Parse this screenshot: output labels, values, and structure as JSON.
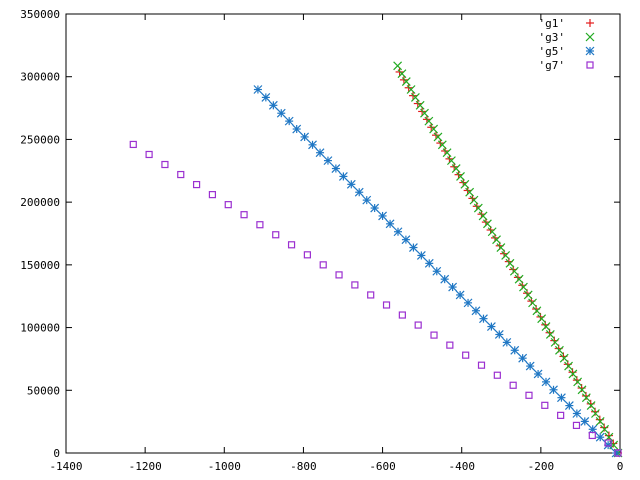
{
  "chart_data": {
    "type": "scatter",
    "title": "",
    "xlabel": "",
    "ylabel": "",
    "xlim": [
      -1400,
      0
    ],
    "ylim": [
      0,
      350000
    ],
    "x_ticks": [
      -1400,
      -1200,
      -1000,
      -800,
      -600,
      -400,
      -200,
      0
    ],
    "y_ticks": [
      0,
      50000,
      100000,
      150000,
      200000,
      250000,
      300000,
      350000
    ],
    "grid": false,
    "legend_position": "top-right",
    "series": [
      {
        "name": "'g1'",
        "marker": "plus",
        "color": "#e31a1c",
        "x": [
          -5,
          -17,
          -28,
          -40,
          -51,
          -63,
          -74,
          -86,
          -97,
          -109,
          -120,
          -132,
          -143,
          -155,
          -166,
          -178,
          -189,
          -201,
          -212,
          -224,
          -235,
          -247,
          -258,
          -270,
          -281,
          -293,
          -304,
          -316,
          -327,
          -339,
          -350,
          -362,
          -373,
          -385,
          -396,
          -408,
          -419,
          -431,
          -442,
          -454,
          -465,
          -477,
          -488,
          -500,
          -511,
          -523,
          -534,
          -546,
          -557
        ],
        "y": [
          0,
          7600,
          13900,
          20300,
          26600,
          32900,
          39200,
          45500,
          51800,
          58100,
          64400,
          70700,
          77000,
          83300,
          89600,
          95900,
          102200,
          108500,
          114800,
          121100,
          127400,
          133700,
          140000,
          146300,
          152600,
          158900,
          165200,
          171500,
          177800,
          184100,
          190400,
          196700,
          203000,
          209300,
          215600,
          221900,
          228200,
          234500,
          240800,
          247100,
          253400,
          259700,
          266000,
          272300,
          278600,
          284900,
          291200,
          297500,
          303800
        ]
      },
      {
        "name": "'g3'",
        "marker": "cross",
        "color": "#22aa22",
        "x": [
          -5,
          -16,
          -28,
          -39,
          -50,
          -62,
          -73,
          -85,
          -96,
          -107,
          -119,
          -130,
          -141,
          -153,
          -164,
          -176,
          -187,
          -198,
          -210,
          -221,
          -232,
          -244,
          -255,
          -267,
          -278,
          -289,
          -301,
          -312,
          -323,
          -335,
          -346,
          -358,
          -369,
          -380,
          -392,
          -403,
          -414,
          -426,
          -437,
          -449,
          -460,
          -471,
          -483,
          -494,
          -505,
          -517,
          -528,
          -540,
          -551,
          -562
        ],
        "y": [
          0,
          6300,
          12600,
          18900,
          25200,
          31500,
          37800,
          44100,
          50400,
          56700,
          63000,
          69300,
          75600,
          81900,
          88200,
          94500,
          100800,
          107100,
          113400,
          119700,
          126000,
          132300,
          138600,
          144900,
          151200,
          157500,
          163800,
          170100,
          176400,
          182700,
          189000,
          195300,
          201600,
          207900,
          214200,
          220500,
          226800,
          233100,
          239400,
          245700,
          252000,
          258300,
          264600,
          270900,
          277200,
          283500,
          289800,
          296100,
          302400,
          308700
        ]
      },
      {
        "name": "'g5'",
        "marker": "star",
        "color": "#1f77c4",
        "x": [
          -10,
          -30,
          -50,
          -69,
          -89,
          -109,
          -128,
          -148,
          -168,
          -187,
          -207,
          -227,
          -246,
          -266,
          -286,
          -305,
          -325,
          -345,
          -364,
          -384,
          -404,
          -423,
          -443,
          -463,
          -482,
          -502,
          -522,
          -541,
          -561,
          -581,
          -600,
          -620,
          -640,
          -659,
          -679,
          -699,
          -718,
          -738,
          -758,
          -777,
          -797,
          -817,
          -836,
          -856,
          -876,
          -895,
          -915
        ],
        "y": [
          0,
          6300,
          12600,
          18900,
          25200,
          31500,
          37800,
          44100,
          50400,
          56700,
          63000,
          69300,
          75600,
          81900,
          88200,
          94500,
          100800,
          107100,
          113400,
          119700,
          126000,
          132300,
          138600,
          144900,
          151200,
          157500,
          163800,
          170100,
          176400,
          182700,
          189000,
          195300,
          201600,
          207900,
          214200,
          220500,
          226800,
          233100,
          239400,
          245700,
          252000,
          258300,
          264600,
          270900,
          277200,
          283500,
          289800
        ]
      },
      {
        "name": "'g7'",
        "marker": "square",
        "color": "#9b30d0",
        "x": [
          -5,
          -30,
          -70,
          -110,
          -150,
          -190,
          -230,
          -270,
          -310,
          -350,
          -390,
          -430,
          -470,
          -510,
          -550,
          -590,
          -630,
          -670,
          -710,
          -750,
          -790,
          -830,
          -870,
          -910,
          -950,
          -990,
          -1030,
          -1070,
          -1110,
          -1150,
          -1190,
          -1230
        ],
        "y": [
          0,
          8000,
          14000,
          22000,
          30000,
          38000,
          46000,
          54000,
          62000,
          70000,
          78000,
          86000,
          94000,
          102000,
          110000,
          118000,
          126000,
          134000,
          142000,
          150000,
          158000,
          166000,
          174000,
          182000,
          190000,
          198000,
          206000,
          214000,
          222000,
          230000,
          238000,
          246000
        ]
      }
    ]
  }
}
